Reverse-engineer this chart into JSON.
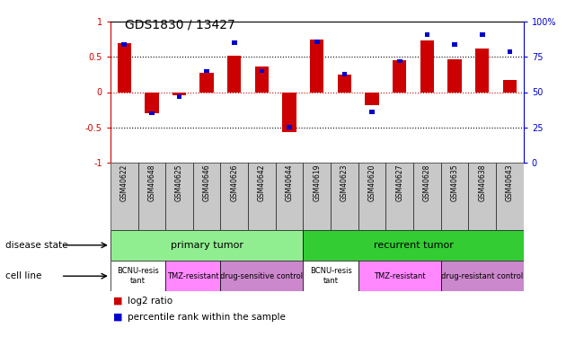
{
  "title": "GDS1830 / 13427",
  "samples": [
    "GSM40622",
    "GSM40648",
    "GSM40625",
    "GSM40646",
    "GSM40626",
    "GSM40642",
    "GSM40644",
    "GSM40619",
    "GSM40623",
    "GSM40620",
    "GSM40627",
    "GSM40628",
    "GSM40635",
    "GSM40638",
    "GSM40643"
  ],
  "log2_ratio": [
    0.7,
    -0.3,
    -0.05,
    0.27,
    0.52,
    0.37,
    -0.57,
    0.75,
    0.25,
    -0.18,
    0.45,
    0.73,
    0.47,
    0.62,
    0.17
  ],
  "pct_rank_scaled": [
    0.68,
    -0.3,
    -0.06,
    0.3,
    0.7,
    0.3,
    -0.5,
    0.72,
    0.26,
    -0.28,
    0.44,
    0.82,
    0.68,
    0.82,
    0.58
  ],
  "disease_state": [
    {
      "label": "primary tumor",
      "start": 0,
      "end": 7,
      "color": "#90ee90"
    },
    {
      "label": "recurrent tumor",
      "start": 7,
      "end": 15,
      "color": "#33cc33"
    }
  ],
  "cell_lines": [
    {
      "label": "BCNU-resis\ntant",
      "start": 0,
      "end": 2,
      "color": "#ffffff"
    },
    {
      "label": "TMZ-resistant",
      "start": 2,
      "end": 4,
      "color": "#ff88ff"
    },
    {
      "label": "drug-sensitive control",
      "start": 4,
      "end": 7,
      "color": "#cc88cc"
    },
    {
      "label": "BCNU-resis\ntant",
      "start": 7,
      "end": 9,
      "color": "#ffffff"
    },
    {
      "label": "TMZ-resistant",
      "start": 9,
      "end": 12,
      "color": "#ff88ff"
    },
    {
      "label": "drug-resistant control",
      "start": 12,
      "end": 15,
      "color": "#cc88cc"
    }
  ],
  "bar_color_red": "#cc0000",
  "bar_color_blue": "#0000cc",
  "axis_left_color": "#cc0000",
  "axis_right_color": "#0000cc",
  "zero_line_color": "#cc0000",
  "sample_bg_color": "#c8c8c8",
  "annotation_disease": "disease state",
  "annotation_cell": "cell line"
}
